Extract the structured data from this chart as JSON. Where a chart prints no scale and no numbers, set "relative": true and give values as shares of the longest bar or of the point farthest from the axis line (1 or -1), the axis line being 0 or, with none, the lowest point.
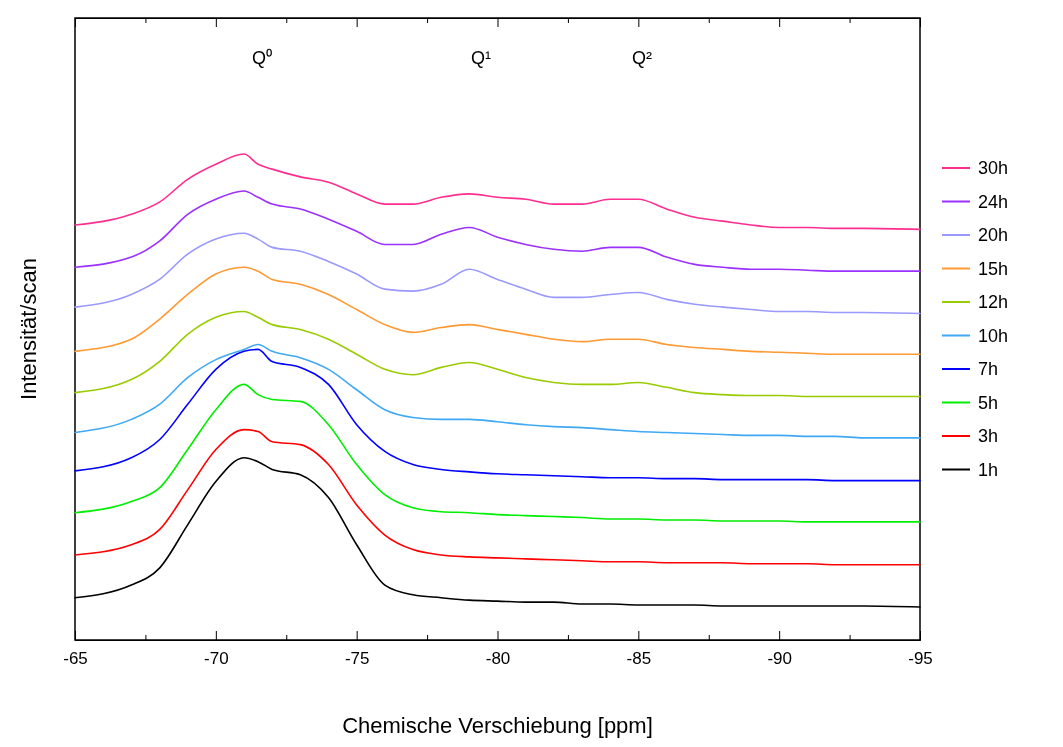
{
  "chart_data": {
    "type": "line",
    "relative": true,
    "xlabel": "Chemische Verschiebung [ppm]",
    "ylabel": "Intensität/scan",
    "legend": "right",
    "xlim": [
      -65,
      -95
    ],
    "xticks": [
      -65,
      {
        "value": -67.5,
        "label": null
      },
      -70,
      {
        "value": -72.5,
        "label": null
      },
      -75,
      {
        "value": -77.5,
        "label": null
      },
      -80,
      {
        "value": -82.5,
        "label": null
      },
      -85,
      {
        "value": -87.5,
        "label": null
      },
      -90,
      {
        "value": -92.5,
        "label": null
      },
      -95
    ],
    "annotations": [
      "Q⁰",
      "Q¹",
      "Q²"
    ],
    "x": [
      -65,
      -67,
      -68,
      -69,
      -70,
      -71,
      -71.5,
      -72,
      -73,
      -74,
      -75,
      -76,
      -77,
      -78,
      -79,
      -80,
      -81,
      -82,
      -83,
      -84,
      -85,
      -86,
      -87,
      -88,
      -89,
      -90,
      -91,
      -92,
      -93,
      -95
    ],
    "series": [
      {
        "name": "30h",
        "color": "#ff2d8f",
        "values": [
          0.854,
          0.876,
          0.901,
          0.948,
          0.979,
          1,
          0.979,
          0.969,
          0.953,
          0.942,
          0.918,
          0.897,
          0.897,
          0.911,
          0.918,
          0.911,
          0.907,
          0.897,
          0.897,
          0.907,
          0.907,
          0.887,
          0.87,
          0.862,
          0.854,
          0.849,
          0.849,
          0.847,
          0.847,
          0.845
        ]
      },
      {
        "name": "24h",
        "color": "#9b30ff",
        "values": [
          0.767,
          0.788,
          0.821,
          0.876,
          0.907,
          0.924,
          0.911,
          0.897,
          0.887,
          0.866,
          0.841,
          0.814,
          0.814,
          0.835,
          0.849,
          0.829,
          0.814,
          0.804,
          0.8,
          0.808,
          0.808,
          0.788,
          0.773,
          0.767,
          0.763,
          0.763,
          0.761,
          0.759,
          0.759,
          0.759
        ]
      },
      {
        "name": "20h",
        "color": "#9999ff",
        "values": [
          0.685,
          0.711,
          0.742,
          0.794,
          0.825,
          0.837,
          0.825,
          0.808,
          0.8,
          0.779,
          0.753,
          0.722,
          0.718,
          0.732,
          0.763,
          0.742,
          0.722,
          0.705,
          0.705,
          0.711,
          0.715,
          0.701,
          0.691,
          0.685,
          0.68,
          0.676,
          0.676,
          0.674,
          0.674,
          0.672
        ]
      },
      {
        "name": "15h",
        "color": "#ff9933",
        "values": [
          0.594,
          0.619,
          0.66,
          0.711,
          0.753,
          0.767,
          0.759,
          0.742,
          0.732,
          0.711,
          0.68,
          0.649,
          0.633,
          0.643,
          0.649,
          0.639,
          0.629,
          0.619,
          0.614,
          0.619,
          0.619,
          0.608,
          0.602,
          0.598,
          0.594,
          0.592,
          0.59,
          0.588,
          0.588,
          0.588
        ]
      },
      {
        "name": "12h",
        "color": "#99cc00",
        "values": [
          0.509,
          0.536,
          0.573,
          0.629,
          0.664,
          0.676,
          0.664,
          0.649,
          0.639,
          0.619,
          0.588,
          0.557,
          0.546,
          0.561,
          0.571,
          0.557,
          0.54,
          0.53,
          0.526,
          0.526,
          0.53,
          0.52,
          0.509,
          0.505,
          0.503,
          0.503,
          0.501,
          0.501,
          0.501,
          0.501
        ]
      },
      {
        "name": "10h",
        "color": "#3fa9f5",
        "values": [
          0.427,
          0.454,
          0.485,
          0.54,
          0.577,
          0.598,
          0.608,
          0.594,
          0.581,
          0.557,
          0.515,
          0.474,
          0.458,
          0.454,
          0.454,
          0.449,
          0.443,
          0.439,
          0.437,
          0.433,
          0.429,
          0.427,
          0.425,
          0.423,
          0.421,
          0.421,
          0.419,
          0.419,
          0.416,
          0.416
        ]
      },
      {
        "name": "7h",
        "color": "#0000ff",
        "values": [
          0.348,
          0.375,
          0.412,
          0.485,
          0.557,
          0.594,
          0.598,
          0.573,
          0.561,
          0.526,
          0.443,
          0.388,
          0.361,
          0.351,
          0.346,
          0.342,
          0.34,
          0.338,
          0.336,
          0.334,
          0.334,
          0.332,
          0.332,
          0.33,
          0.33,
          0.33,
          0.33,
          0.328,
          0.328,
          0.328
        ]
      },
      {
        "name": "5h",
        "color": "#00ee00",
        "values": [
          0.262,
          0.285,
          0.313,
          0.392,
          0.474,
          0.526,
          0.505,
          0.495,
          0.491,
          0.443,
          0.361,
          0.299,
          0.272,
          0.264,
          0.262,
          0.258,
          0.256,
          0.254,
          0.252,
          0.249,
          0.249,
          0.247,
          0.247,
          0.245,
          0.245,
          0.245,
          0.243,
          0.243,
          0.243,
          0.243
        ]
      },
      {
        "name": "3h",
        "color": "#ff0000",
        "values": [
          0.175,
          0.196,
          0.227,
          0.309,
          0.392,
          0.433,
          0.429,
          0.408,
          0.402,
          0.361,
          0.278,
          0.216,
          0.186,
          0.175,
          0.171,
          0.169,
          0.167,
          0.165,
          0.163,
          0.161,
          0.161,
          0.159,
          0.159,
          0.159,
          0.157,
          0.157,
          0.157,
          0.155,
          0.155,
          0.155
        ]
      },
      {
        "name": "1h",
        "color": "#000000",
        "values": [
          0.087,
          0.113,
          0.148,
          0.237,
          0.326,
          0.375,
          0.367,
          0.351,
          0.34,
          0.293,
          0.196,
          0.113,
          0.093,
          0.087,
          0.082,
          0.08,
          0.078,
          0.078,
          0.074,
          0.074,
          0.072,
          0.072,
          0.072,
          0.07,
          0.07,
          0.07,
          0.07,
          0.07,
          0.07,
          0.068
        ]
      }
    ]
  }
}
